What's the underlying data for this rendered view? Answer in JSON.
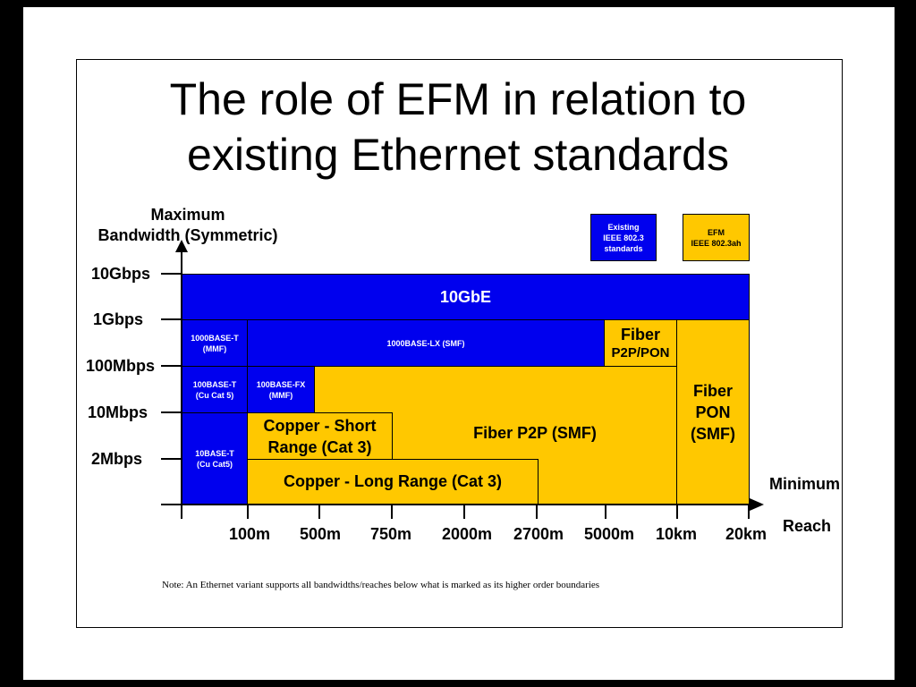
{
  "title_line1": "The role of EFM in relation to",
  "title_line2": "existing Ethernet standards",
  "y_axis_label_line1": "Maximum",
  "y_axis_label_line2": "Bandwidth (Symmetric)",
  "x_axis_label_line1": "Minimum",
  "x_axis_label_line2": "Reach",
  "y_ticks": [
    "10Gbps",
    "1Gbps",
    "100Mbps",
    "10Mbps",
    "2Mbps"
  ],
  "x_ticks": [
    "100m",
    "500m",
    "750m",
    "2000m",
    "2700m",
    "5000m",
    "10km",
    "20km"
  ],
  "legend": {
    "existing_line1": "Existing",
    "existing_line2": "IEEE 802.3",
    "existing_line3": "standards",
    "efm_line1": "EFM",
    "efm_line2": "IEEE 802.3ah",
    "existing_color": "#0000ee",
    "efm_color": "#ffc800"
  },
  "blocks": {
    "tengbe": "10GbE",
    "gbe_t_line1": "1000BASE-T",
    "gbe_t_line2": "(MMF)",
    "gbe_lx": "1000BASE-LX (SMF)",
    "fiber_p2p_pon_line1": "Fiber",
    "fiber_p2p_pon_line2": "P2P/PON",
    "fe_t_line1": "100BASE-T",
    "fe_t_line2": "(Cu Cat 5)",
    "fe_fx_line1": "100BASE-FX",
    "fe_fx_line2": "(MMF)",
    "fiber_pon_line1": "Fiber",
    "fiber_pon_line2": "PON",
    "fiber_pon_line3": "(SMF)",
    "ten_t_line1": "10BASE-T",
    "ten_t_line2": "(Cu Cat5)",
    "copper_short_line1": "Copper - Short",
    "copper_short_line2": "Range (Cat 3)",
    "fiber_p2p": "Fiber P2P (SMF)",
    "copper_long": "Copper - Long Range (Cat 3)"
  },
  "note": "Note: An Ethernet variant supports all bandwidths/reaches below what is marked as its higher order boundaries"
}
